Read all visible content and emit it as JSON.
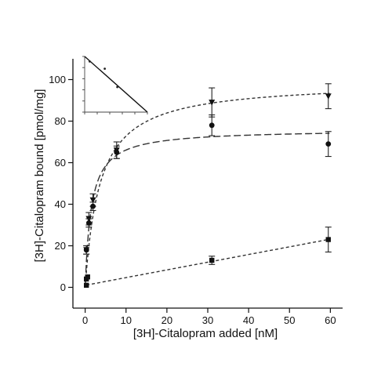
{
  "chart_data": {
    "type": "scatter",
    "title": "",
    "xlabel": "[3H]-Citalopram added [nM]",
    "ylabel": "[3H]-Citalopram bound [pmol/mg]",
    "xlim": [
      -3,
      63
    ],
    "ylim": [
      -10,
      110
    ],
    "x_ticks": [
      0,
      10,
      20,
      30,
      40,
      50,
      60
    ],
    "y_ticks": [
      0,
      20,
      40,
      60,
      80,
      100
    ],
    "grid": false,
    "legend": "none",
    "series": [
      {
        "marker": "triangle-down",
        "x": [
          0.3,
          0.9,
          1.9,
          7.7,
          31,
          59.5
        ],
        "y": [
          18,
          33,
          42,
          66,
          89,
          92
        ],
        "err": [
          2,
          3,
          3,
          4,
          7,
          6
        ],
        "fit": {
          "kind": "hyperbola",
          "bmax": 99,
          "kd": 3.6
        },
        "line_style": "short-dash"
      },
      {
        "marker": "circle",
        "x": [
          0.3,
          0.9,
          1.9,
          7.7,
          31,
          59.5
        ],
        "y": [
          18,
          31,
          39,
          65,
          78,
          69
        ],
        "err": [
          2,
          2,
          2,
          3,
          5,
          6
        ],
        "fit": {
          "kind": "hyperbola",
          "bmax": 76,
          "kd": 1.5
        },
        "line_style": "long-dash"
      },
      {
        "marker": "square",
        "x": [
          0.3,
          0.3,
          0.6,
          31,
          59.5
        ],
        "y": [
          1,
          4,
          5,
          13,
          23
        ],
        "err": [
          0,
          0,
          0,
          2,
          6
        ],
        "fit": {
          "kind": "linear",
          "slope": 0.37,
          "intercept": 1
        },
        "line_style": "short-dash"
      }
    ],
    "inset": {
      "type": "line",
      "x": [
        0,
        1,
        2,
        3,
        4,
        5,
        6,
        7,
        8,
        9,
        10
      ],
      "y": [
        10,
        9,
        8,
        7,
        6,
        5,
        4,
        3,
        2,
        1,
        0
      ],
      "points_x": [
        0.8,
        3.2,
        5.2
      ],
      "points_y": [
        9.1,
        7.8,
        4.5
      ],
      "xlim": [
        0,
        10
      ],
      "ylim": [
        0,
        10
      ]
    }
  }
}
